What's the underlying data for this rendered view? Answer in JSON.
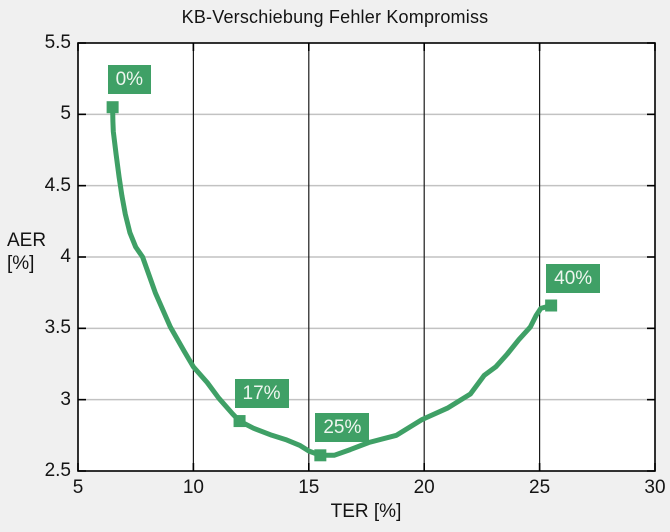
{
  "chart_data": {
    "type": "line",
    "title": "KB-Verschiebung Fehler Kompromiss",
    "xlabel": "TER [%]",
    "ylabel": "AER [%]",
    "ylabel_lines": [
      "AER",
      "[%]"
    ],
    "xlim": [
      5,
      30
    ],
    "ylim": [
      2.5,
      5.5
    ],
    "xticks": [
      5,
      10,
      15,
      20,
      25,
      30
    ],
    "xtick_labels": [
      "5",
      "10",
      "15",
      "20",
      "25",
      "30"
    ],
    "yticks": [
      2.5,
      3,
      3.5,
      4,
      4.5,
      5,
      5.5
    ],
    "ytick_labels": [
      "2.5",
      "3",
      "3.5",
      "4",
      "4.5",
      "5",
      "5.5"
    ],
    "grid": "on",
    "legend": "none",
    "series": [
      {
        "points": [
          [
            6.5,
            5.06
          ],
          [
            6.51,
            4.95
          ],
          [
            6.53,
            4.88
          ],
          [
            6.65,
            4.72
          ],
          [
            6.78,
            4.56
          ],
          [
            6.9,
            4.43
          ],
          [
            7.05,
            4.3
          ],
          [
            7.25,
            4.17
          ],
          [
            7.5,
            4.07
          ],
          [
            7.8,
            4.0
          ],
          [
            8.35,
            3.75
          ],
          [
            9.0,
            3.51
          ],
          [
            9.6,
            3.34
          ],
          [
            10.0,
            3.23
          ],
          [
            10.6,
            3.12
          ],
          [
            11.1,
            3.01
          ],
          [
            11.7,
            2.9
          ],
          [
            12.0,
            2.85
          ],
          [
            12.6,
            2.8
          ],
          [
            13.4,
            2.75
          ],
          [
            14.0,
            2.72
          ],
          [
            14.6,
            2.68
          ],
          [
            15.0,
            2.64
          ],
          [
            15.5,
            2.61
          ],
          [
            16.1,
            2.61
          ],
          [
            16.8,
            2.65
          ],
          [
            17.6,
            2.7
          ],
          [
            18.8,
            2.75
          ],
          [
            19.9,
            2.86
          ],
          [
            21.0,
            2.94
          ],
          [
            22.0,
            3.04
          ],
          [
            22.6,
            3.17
          ],
          [
            23.1,
            3.23
          ],
          [
            23.6,
            3.32
          ],
          [
            24.1,
            3.42
          ],
          [
            24.6,
            3.51
          ],
          [
            24.85,
            3.59
          ],
          [
            25.05,
            3.64
          ],
          [
            25.5,
            3.66
          ]
        ]
      }
    ],
    "annotations": [
      {
        "label": "0%",
        "x": 6.5,
        "y": 5.05
      },
      {
        "label": "17%",
        "x": 12.0,
        "y": 2.85
      },
      {
        "label": "25%",
        "x": 15.5,
        "y": 2.61
      },
      {
        "label": "40%",
        "x": 25.5,
        "y": 3.66
      }
    ],
    "colors": {
      "line": "#3fa066",
      "marker": "#3fa066",
      "annotation_bg": "#3fa066",
      "annotation_text": "#eef6ef",
      "grid_y": "#c2c2c2",
      "grid_x": "#1a1a1a",
      "axis": "#000000",
      "plot_bg": "#ffffff",
      "figure_bg": "#f0f0f0",
      "text": "#141414"
    }
  }
}
